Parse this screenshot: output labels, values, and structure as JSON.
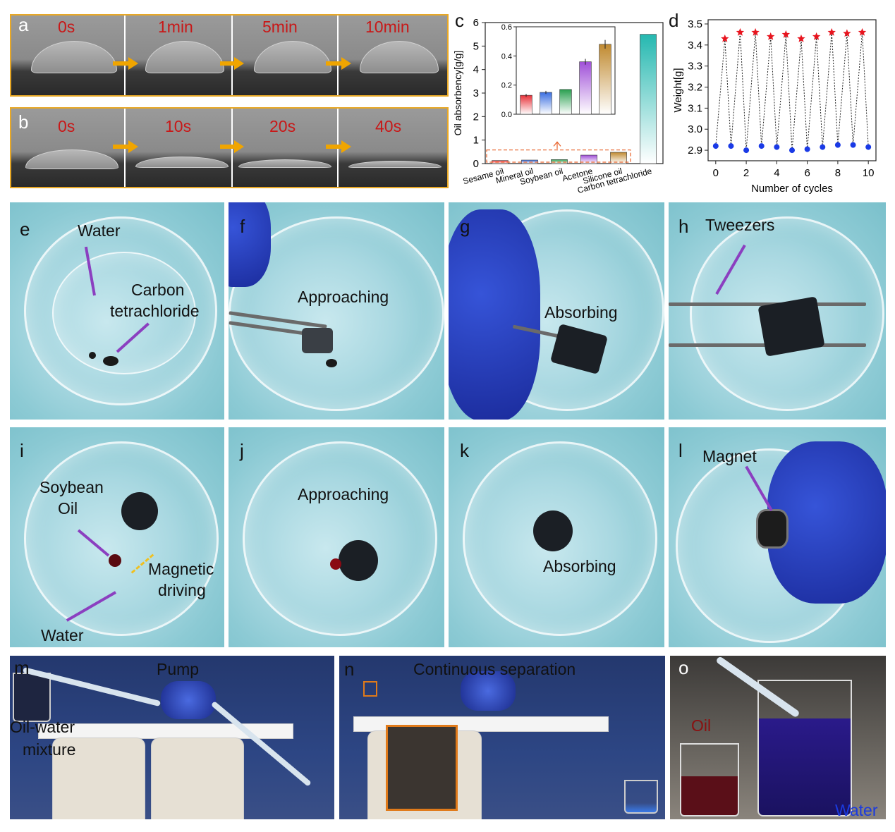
{
  "panel_letters": {
    "a": "a",
    "b": "b",
    "c": "c",
    "d": "d",
    "e": "e",
    "f": "f",
    "g": "g",
    "h": "h",
    "i": "i",
    "j": "j",
    "k": "k",
    "l": "l",
    "m": "m",
    "n": "n",
    "o": "o"
  },
  "panel_a": {
    "times": [
      "0s",
      "1min",
      "5min",
      "10min"
    ]
  },
  "panel_b": {
    "times": [
      "0s",
      "10s",
      "20s",
      "40s"
    ]
  },
  "panel_e": {
    "water": "Water",
    "ccl4_line1": "Carbon",
    "ccl4_line2": "tetrachloride"
  },
  "panel_f": {
    "label": "Approaching"
  },
  "panel_g": {
    "label": "Absorbing"
  },
  "panel_h": {
    "label": "Tweezers"
  },
  "panel_i": {
    "oil_line1": "Soybean",
    "oil_line2": "Oil",
    "mag_line1": "Magnetic",
    "mag_line2": "driving",
    "water": "Water"
  },
  "panel_j": {
    "label": "Approaching"
  },
  "panel_k": {
    "label": "Absorbing"
  },
  "panel_l": {
    "label": "Magnet"
  },
  "panel_m": {
    "pump": "Pump",
    "mix_line1": "Oil-water",
    "mix_line2": "mixture"
  },
  "panel_n": {
    "label": "Continuous separation"
  },
  "panel_o": {
    "oil": "Oil",
    "water": "Water"
  },
  "colors": {
    "frame_border": "#e8a826",
    "time_text": "#c81818",
    "purple_arrow": "#8b3fc0",
    "red_star": "#e8141e",
    "blue_dot": "#1a3ae6",
    "teal_bar": "#25b8b0"
  },
  "chart_data": [
    {
      "type": "bar",
      "ylabel": "Oil absorbency[g/g]",
      "categories": [
        "Sesame oil",
        "Mineral oil",
        "Soybean oil",
        "Acetone",
        "Silicone oil",
        "Carbon tetrachloride"
      ],
      "values": [
        0.13,
        0.15,
        0.17,
        0.36,
        0.48,
        5.5
      ],
      "ylim": [
        0,
        6
      ],
      "yticks": [
        "0",
        "1",
        "2",
        "3",
        "4",
        "5",
        "6"
      ],
      "colors": [
        "#e8323a",
        "#3a6ee0",
        "#2aa050",
        "#a050d8",
        "#c08a30",
        "#25b8b0"
      ],
      "inset": {
        "categories": [
          "Sesame oil",
          "Mineral oil",
          "Soybean oil",
          "Acetone",
          "Silicone oil"
        ],
        "values": [
          0.13,
          0.15,
          0.17,
          0.36,
          0.48
        ],
        "errors": [
          0.01,
          0.01,
          0.0,
          0.02,
          0.03
        ],
        "ylim": [
          0,
          0.6
        ],
        "yticks": [
          "0.0",
          "0.2",
          "0.4",
          "0.6"
        ]
      }
    },
    {
      "type": "scatter",
      "xlabel": "Number of cycles",
      "ylabel": "Weight[g]",
      "xlim": [
        -0.5,
        10.5
      ],
      "ylim": [
        2.85,
        3.52
      ],
      "xticks": [
        "0",
        "2",
        "4",
        "6",
        "8",
        "10"
      ],
      "yticks": [
        "2.9",
        "3.0",
        "3.1",
        "3.2",
        "3.3",
        "3.4",
        "3.5"
      ],
      "series": [
        {
          "marker": "circle",
          "x": [
            0,
            1,
            2,
            3,
            4,
            5,
            6,
            7,
            8,
            9,
            10
          ],
          "y": [
            2.92,
            2.92,
            2.9,
            2.92,
            2.915,
            2.9,
            2.905,
            2.915,
            2.925,
            2.925,
            2.915
          ]
        },
        {
          "marker": "star",
          "x": [
            0.6,
            1.6,
            2.6,
            3.6,
            4.6,
            5.6,
            6.6,
            7.6,
            8.6,
            9.6
          ],
          "y": [
            3.43,
            3.46,
            3.46,
            3.44,
            3.45,
            3.43,
            3.44,
            3.46,
            3.455,
            3.46
          ]
        }
      ]
    }
  ]
}
